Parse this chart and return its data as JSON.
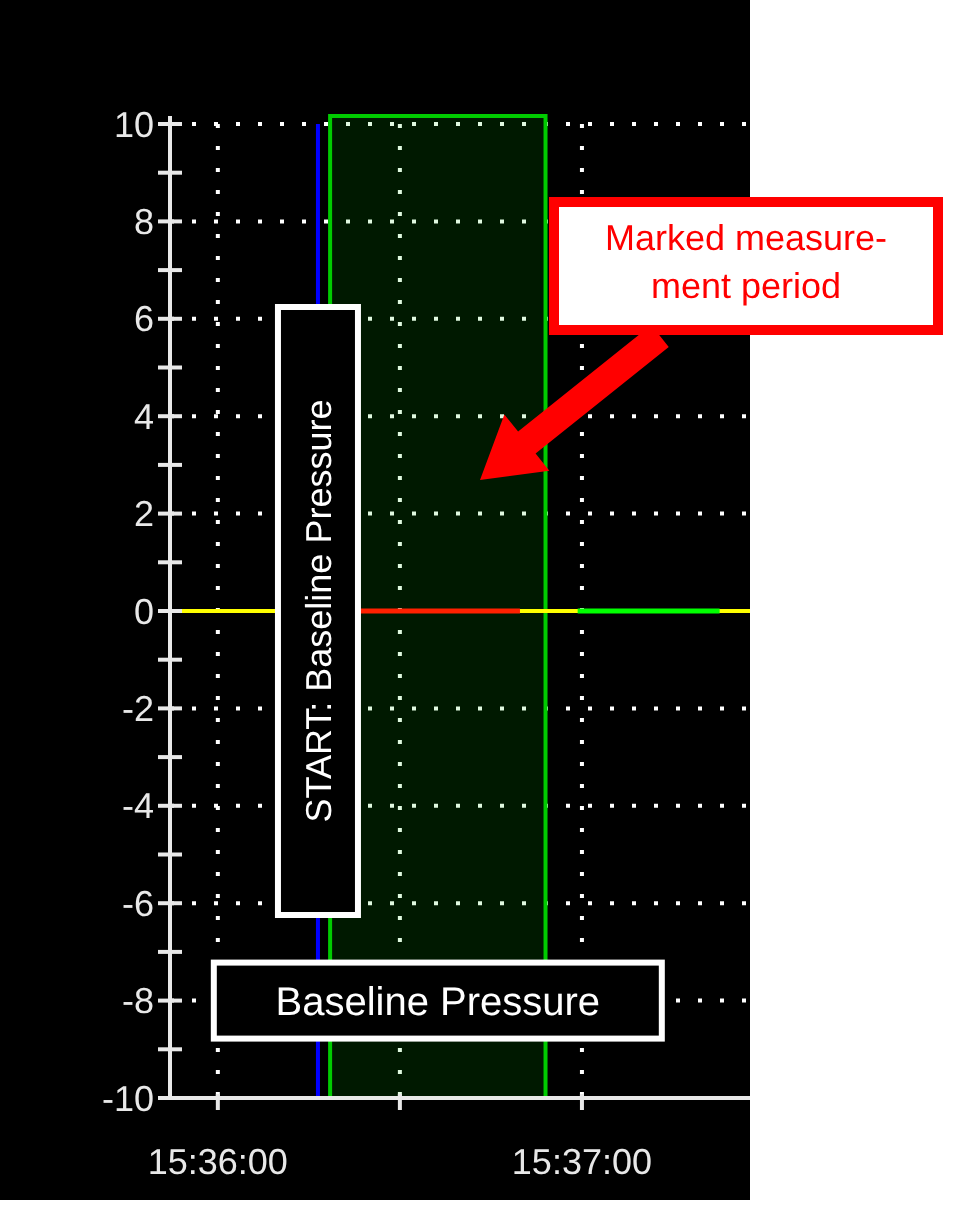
{
  "chart_data": {
    "type": "line",
    "x": [
      15.6065,
      15.61383
    ],
    "series": [
      {
        "color": "#ff2000",
        "values": [
          0,
          0
        ]
      },
      {
        "color": "#00ff00",
        "x": [
          15.61647,
          15.62297
        ],
        "values": [
          0,
          0
        ]
      }
    ],
    "xlim": [
      15.59781,
      15.62436
    ],
    "xticks": [
      {
        "value": 15.6,
        "label": "15:36:00"
      },
      {
        "value": 15.608333,
        "label": null
      },
      {
        "value": 15.616667,
        "label": "15:37:00"
      }
    ],
    "ylim": [
      -10,
      10
    ],
    "yticks": [
      -10,
      {
        "value": -9,
        "label": null
      },
      -8,
      {
        "value": -7,
        "label": null
      },
      -6,
      {
        "value": -5,
        "label": null
      },
      -4,
      {
        "value": -3,
        "label": null
      },
      -2,
      {
        "value": -1,
        "label": null
      },
      0,
      {
        "value": 1,
        "label": null
      },
      2,
      {
        "value": 3,
        "label": null
      },
      4,
      {
        "value": 5,
        "label": null
      },
      6,
      {
        "value": 7,
        "label": null
      },
      8,
      {
        "value": 9,
        "label": null
      },
      10
    ],
    "grid": true,
    "ref_lines": [
      {
        "axis": "y",
        "value": 0,
        "color": "#ffff00"
      },
      {
        "axis": "x",
        "value": 15.604583,
        "label": "START: Baseline Pressure",
        "color": "#0000ff"
      }
    ],
    "bands": [
      {
        "axis": "x",
        "from": 15.605139,
        "to": 15.615,
        "label": "Baseline Pressure",
        "color": "#00cc00"
      }
    ],
    "annotations": [
      "Marked measure-\nment period"
    ]
  }
}
